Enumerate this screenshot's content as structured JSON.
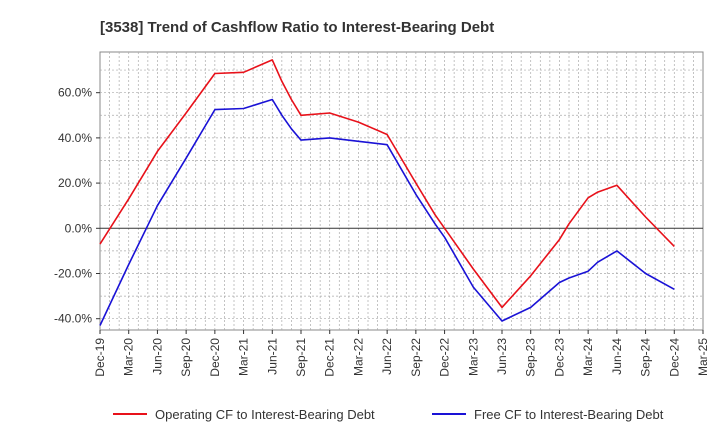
{
  "chart_data": {
    "type": "line",
    "title": "[3538]  Trend of Cashflow Ratio to Interest-Bearing Debt",
    "xlabel": "",
    "ylabel": "",
    "x_ticks": [
      "Dec-19",
      "Mar-20",
      "Jun-20",
      "Sep-20",
      "Dec-20",
      "Mar-21",
      "Jun-21",
      "Sep-21",
      "Dec-21",
      "Mar-22",
      "Jun-22",
      "Sep-22",
      "Dec-22",
      "Mar-23",
      "Jun-23",
      "Sep-23",
      "Dec-23",
      "Mar-24",
      "Jun-24",
      "Sep-24",
      "Dec-24",
      "Mar-25"
    ],
    "y_ticks": [
      "-40.0%",
      "-20.0%",
      "0.0%",
      "20.0%",
      "40.0%",
      "60.0%"
    ],
    "ylim": [
      -45,
      78
    ],
    "grid": true,
    "legend_position": "bottom",
    "series": [
      {
        "name": "Operating CF to Interest-Bearing Debt",
        "color": "#e8111a",
        "x": [
          "Dec-19",
          "Mar-20",
          "Jun-20",
          "Sep-20",
          "Dec-20",
          "Mar-21",
          "Jun-21",
          "Jul-21",
          "Aug-21",
          "Sep-21",
          "Dec-21",
          "Mar-22",
          "Jun-22",
          "Sep-22",
          "Nov-22",
          "Dec-22",
          "Mar-23",
          "Jun-23",
          "Sep-23",
          "Dec-23",
          "Jan-24",
          "Mar-24",
          "Apr-24",
          "Jun-24",
          "Sep-24",
          "Dec-24"
        ],
        "values": [
          -7,
          13,
          34,
          51,
          68.5,
          69,
          74.5,
          65,
          57,
          50,
          51,
          47,
          41.5,
          20,
          6,
          0,
          -18,
          -35,
          -21,
          -5,
          2,
          13.5,
          16,
          19,
          5,
          -8
        ]
      },
      {
        "name": "Free CF to Interest-Bearing Debt",
        "color": "#1a12d6",
        "x": [
          "Dec-19",
          "Mar-20",
          "Jun-20",
          "Sep-20",
          "Dec-20",
          "Mar-21",
          "Jun-21",
          "Jul-21",
          "Aug-21",
          "Sep-21",
          "Dec-21",
          "Mar-22",
          "Jun-22",
          "Sep-22",
          "Nov-22",
          "Dec-22",
          "Mar-23",
          "Jun-23",
          "Sep-23",
          "Dec-23",
          "Jan-24",
          "Mar-24",
          "Apr-24",
          "Jun-24",
          "Sep-24",
          "Dec-24"
        ],
        "values": [
          -43,
          -16,
          10,
          31,
          52.5,
          53,
          57,
          50,
          44,
          39,
          40,
          38.5,
          37,
          15,
          2,
          -4,
          -26,
          -41,
          -35,
          -24,
          -22,
          -19,
          -15,
          -10,
          -20,
          -27
        ]
      }
    ]
  }
}
